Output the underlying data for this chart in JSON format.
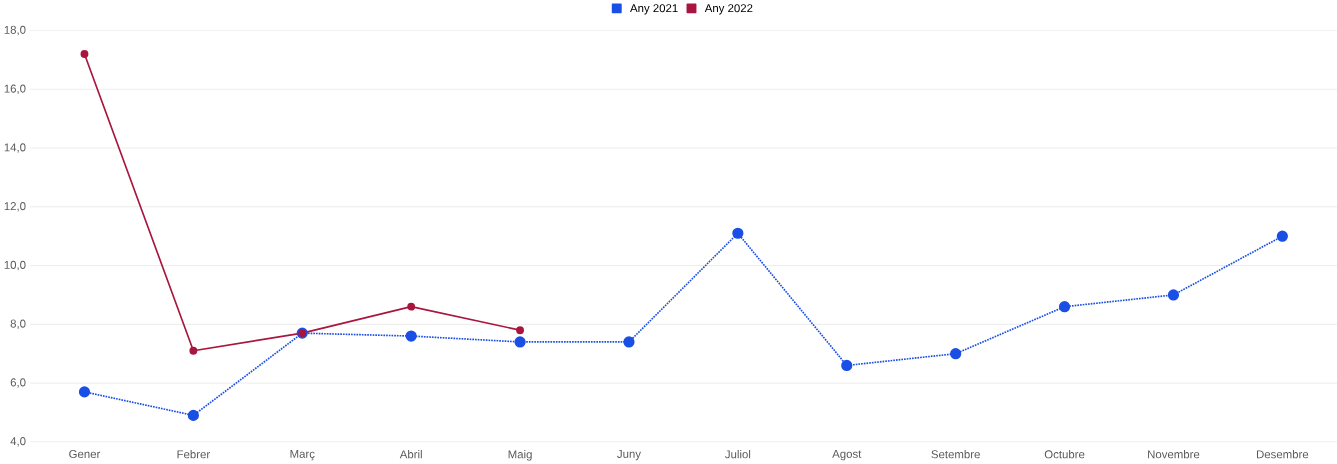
{
  "chart_data": {
    "type": "line",
    "categories": [
      "Gener",
      "Febrer",
      "Març",
      "Abril",
      "Maig",
      "Juny",
      "Juliol",
      "Agost",
      "Setembre",
      "Octubre",
      "Novembre",
      "Desembre"
    ],
    "series": [
      {
        "name": "Any 2021",
        "color": "#1a4fe6",
        "line_style": "dotted",
        "values": [
          5.7,
          4.9,
          7.7,
          7.6,
          7.4,
          7.4,
          11.1,
          6.6,
          7.0,
          8.6,
          9.0,
          11.0
        ]
      },
      {
        "name": "Any 2022",
        "color": "#a8163f",
        "line_style": "solid",
        "values": [
          17.2,
          7.1,
          7.7,
          8.6,
          7.8,
          null,
          null,
          null,
          null,
          null,
          null,
          null
        ]
      }
    ],
    "ylim": [
      4,
      18
    ],
    "yticks": [
      {
        "value": 4,
        "label": "4,0"
      },
      {
        "value": 6,
        "label": "6,0"
      },
      {
        "value": 8,
        "label": "8,0"
      },
      {
        "value": 10,
        "label": "10,0"
      },
      {
        "value": 12,
        "label": "12,0"
      },
      {
        "value": 14,
        "label": "14,0"
      },
      {
        "value": 16,
        "label": "16,0"
      },
      {
        "value": 18,
        "label": "18,0"
      }
    ],
    "grid": "y",
    "legend": "top",
    "marker": "circle"
  }
}
